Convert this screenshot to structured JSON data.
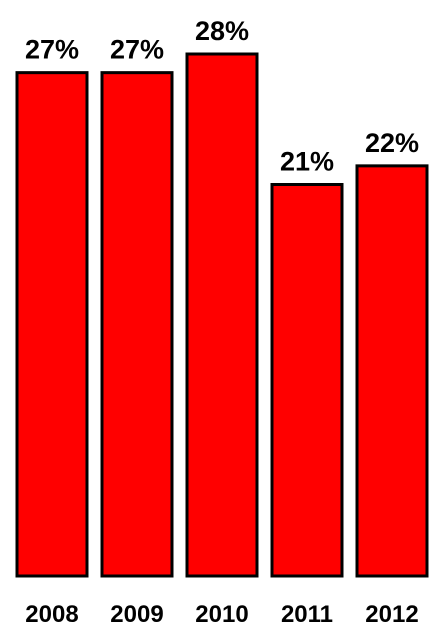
{
  "chart_data": {
    "type": "bar",
    "categories": [
      "2008",
      "2009",
      "2010",
      "2011",
      "2012"
    ],
    "values": [
      27,
      27,
      28,
      21,
      22
    ],
    "value_labels": [
      "27%",
      "27%",
      "28%",
      "21%",
      "22%"
    ],
    "title": "",
    "xlabel": "",
    "ylabel": "",
    "ylim": [
      0,
      28
    ],
    "grid": false,
    "legend": "none",
    "bar_color": "#ff0000",
    "bar_edge_color": "#000000"
  }
}
